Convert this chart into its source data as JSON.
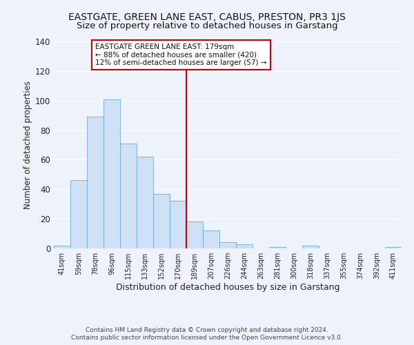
{
  "title": "EASTGATE, GREEN LANE EAST, CABUS, PRESTON, PR3 1JS",
  "subtitle": "Size of property relative to detached houses in Garstang",
  "xlabel": "Distribution of detached houses by size in Garstang",
  "ylabel": "Number of detached properties",
  "bar_labels": [
    "41sqm",
    "59sqm",
    "78sqm",
    "96sqm",
    "115sqm",
    "133sqm",
    "152sqm",
    "170sqm",
    "189sqm",
    "207sqm",
    "226sqm",
    "244sqm",
    "263sqm",
    "281sqm",
    "300sqm",
    "318sqm",
    "337sqm",
    "355sqm",
    "374sqm",
    "392sqm",
    "411sqm"
  ],
  "bar_values": [
    2,
    46,
    89,
    101,
    71,
    62,
    37,
    32,
    18,
    12,
    4,
    3,
    0,
    1,
    0,
    2,
    0,
    0,
    0,
    0,
    1
  ],
  "bar_color": "#cfe0f5",
  "bar_edge_color": "#6baed6",
  "vline_color": "#cc0000",
  "ylim": [
    0,
    140
  ],
  "yticks": [
    0,
    20,
    40,
    60,
    80,
    100,
    120,
    140
  ],
  "annotation_title": "EASTGATE GREEN LANE EAST: 179sqm",
  "annotation_line1": "← 88% of detached houses are smaller (420)",
  "annotation_line2": "12% of semi-detached houses are larger (57) →",
  "annotation_box_color": "#cc0000",
  "footer_line1": "Contains HM Land Registry data © Crown copyright and database right 2024.",
  "footer_line2": "Contains public sector information licensed under the Open Government Licence v3.0.",
  "background_color": "#eef2fb",
  "grid_color": "#ffffff",
  "title_fontsize": 10,
  "subtitle_fontsize": 9.5
}
